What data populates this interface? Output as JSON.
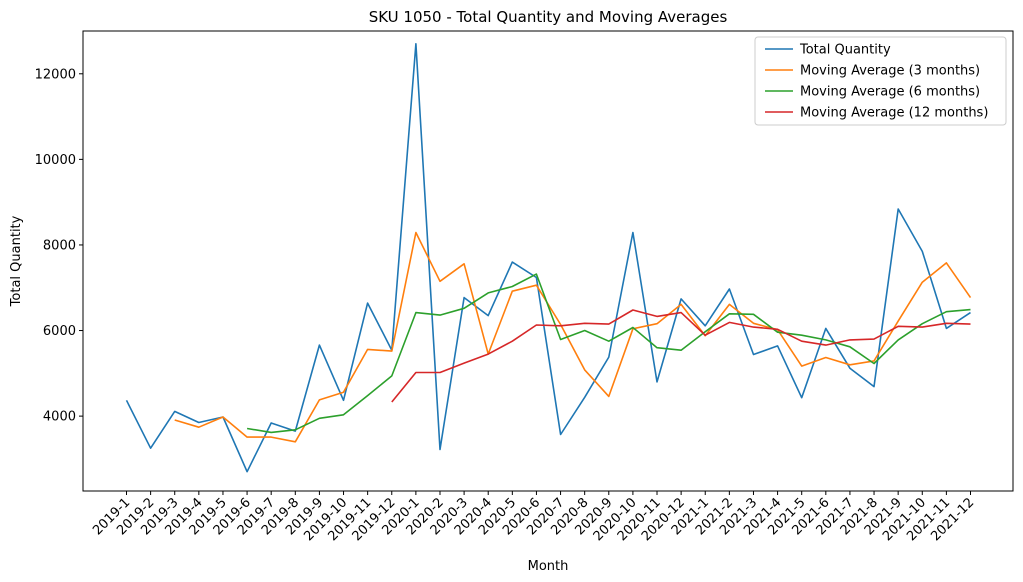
{
  "chart_data": {
    "type": "line",
    "title": "SKU 1050 - Total Quantity and Moving Averages",
    "xlabel": "Month",
    "ylabel": "Total Quantity",
    "ylim": [
      2250,
      13000
    ],
    "yticks": [
      4000,
      6000,
      8000,
      10000,
      12000
    ],
    "grid": false,
    "legend_position": "top-right",
    "categories": [
      "2019-1",
      "2019-2",
      "2019-3",
      "2019-4",
      "2019-5",
      "2019-6",
      "2019-7",
      "2019-8",
      "2019-9",
      "2019-10",
      "2019-11",
      "2019-12",
      "2020-1",
      "2020-2",
      "2020-3",
      "2020-4",
      "2020-5",
      "2020-6",
      "2020-7",
      "2020-8",
      "2020-9",
      "2020-10",
      "2020-11",
      "2020-12",
      "2021-1",
      "2021-2",
      "2021-3",
      "2021-4",
      "2021-5",
      "2021-6",
      "2021-7",
      "2021-8",
      "2021-9",
      "2021-10",
      "2021-11",
      "2021-12"
    ],
    "series": [
      {
        "name": "Total Quantity",
        "color": "#1f77b4",
        "values": [
          4370,
          3250,
          4110,
          3850,
          3980,
          2700,
          3840,
          3650,
          5660,
          4370,
          6640,
          5540,
          12700,
          3220,
          6770,
          6350,
          7600,
          7240,
          3570,
          4440,
          5380,
          8290,
          4800,
          6740,
          6110,
          6970,
          5440,
          5640,
          4430,
          6050,
          5120,
          4690,
          8840,
          7850,
          6050,
          6420
        ]
      },
      {
        "name": "Moving Average (3 months)",
        "color": "#ff7f0e",
        "values": [
          null,
          null,
          3910,
          3740,
          3980,
          3510,
          3510,
          3400,
          4380,
          4560,
          5560,
          5520,
          8290,
          7150,
          7560,
          5450,
          6920,
          7060,
          6140,
          5080,
          4460,
          6040,
          6160,
          6610,
          5880,
          6610,
          6170,
          6020,
          5170,
          5370,
          5200,
          5290,
          6220,
          7130,
          7580,
          6770
        ]
      },
      {
        "name": "Moving Average (6 months)",
        "color": "#2ca02c",
        "values": [
          null,
          null,
          null,
          null,
          null,
          3710,
          3620,
          3680,
          3950,
          4030,
          4480,
          4940,
          6420,
          6360,
          6520,
          6880,
          7030,
          7320,
          5790,
          6000,
          5750,
          6070,
          5600,
          5540,
          5970,
          6390,
          6380,
          5960,
          5890,
          5780,
          5620,
          5230,
          5780,
          6160,
          6440,
          6490
        ]
      },
      {
        "name": "Moving Average (12 months)",
        "color": "#d62728",
        "values": [
          null,
          null,
          null,
          null,
          null,
          null,
          null,
          null,
          null,
          null,
          null,
          4330,
          5020,
          5020,
          5240,
          5450,
          5750,
          6130,
          6110,
          6170,
          6150,
          6480,
          6330,
          6420,
          5890,
          6190,
          6080,
          6030,
          5750,
          5660,
          5780,
          5800,
          6100,
          6080,
          6170,
          6150
        ]
      }
    ]
  }
}
